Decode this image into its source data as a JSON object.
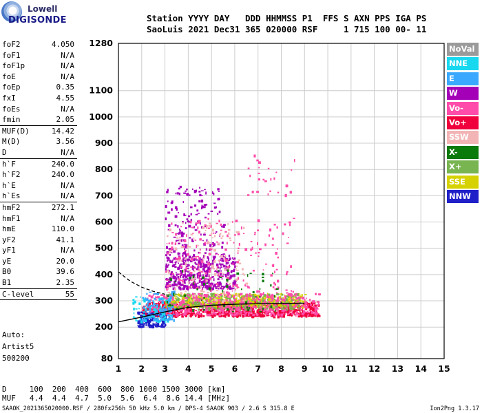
{
  "logo": {
    "line1": "Lowell",
    "line2": "DIGISONDE"
  },
  "header": {
    "line1": "Station YYYY DAY   DDD HHMMSS P1  FFS S AXN PPS IGA PS",
    "line2": "SaoLuis 2021 Dec31 365 020000 RSF     1 715 100 00- 11"
  },
  "params": [
    {
      "label": "foF2",
      "value": "4.050"
    },
    {
      "label": "foF1",
      "value": "N/A"
    },
    {
      "label": "foF1p",
      "value": "N/A"
    },
    {
      "label": "foE",
      "value": "N/A"
    },
    {
      "label": "foEp",
      "value": "0.35"
    },
    {
      "label": "fxI",
      "value": "4.55"
    },
    {
      "label": "foEs",
      "value": "N/A"
    },
    {
      "label": "fmin",
      "value": "2.05"
    },
    {
      "label": "MUF(D)",
      "value": "14.42",
      "sep": true
    },
    {
      "label": "M(D)",
      "value": "3.56"
    },
    {
      "label": "D",
      "value": "N/A"
    },
    {
      "label": "h`F",
      "value": "240.0",
      "sep": true
    },
    {
      "label": "h`F2",
      "value": "240.0"
    },
    {
      "label": "h`E",
      "value": "N/A"
    },
    {
      "label": "h`Es",
      "value": "N/A"
    },
    {
      "label": "hmF2",
      "value": "272.1",
      "sep": true
    },
    {
      "label": "hmF1",
      "value": "N/A"
    },
    {
      "label": "hmE",
      "value": "110.0"
    },
    {
      "label": "yF2",
      "value": "41.1"
    },
    {
      "label": "yF1",
      "value": "N/A"
    },
    {
      "label": "yE",
      "value": "20.0"
    },
    {
      "label": "B0",
      "value": "39.6"
    },
    {
      "label": "B1",
      "value": "2.35"
    },
    {
      "label": "C-level",
      "value": "55",
      "sep": true
    }
  ],
  "auto": {
    "line1": "Auto:",
    "line2": "Artist5",
    "line3": "500200"
  },
  "legend": [
    {
      "label": "NoVal",
      "color": "#9a9a9a"
    },
    {
      "label": "NNE",
      "color": "#18d8f0"
    },
    {
      "label": "E",
      "color": "#3aa8ff"
    },
    {
      "label": "W",
      "color": "#a400b8"
    },
    {
      "label": "Vo-",
      "color": "#ff4caa"
    },
    {
      "label": "Vo+",
      "color": "#f0003c"
    },
    {
      "label": "SSW",
      "color": "#f2b4b4"
    },
    {
      "label": "X-",
      "color": "#0a7a0a"
    },
    {
      "label": "X+",
      "color": "#78b450"
    },
    {
      "label": "SSE",
      "color": "#d6d200"
    },
    {
      "label": "NNW",
      "color": "#2020c8"
    }
  ],
  "muf_table": {
    "d_line": "D     100  200  400  600  800 1000 1500 3000 [km]",
    "m_line": "MUF   4.4  4.4  4.7  5.0  5.6  6.4  8.6 14.4 [MHz]"
  },
  "footer": "SAAOK_2021365020000.RSF / 280fx256h 50 kHz 5.0 km / DPS-4 SAAOK 903 / 2.6 S 315.8 E",
  "version": "Ion2Png 1.3.17",
  "chart_data": {
    "type": "scatter",
    "x_axis": {
      "range": [
        1,
        15
      ],
      "ticks": [
        1,
        2,
        3,
        4,
        5,
        6,
        7,
        8,
        9,
        10,
        11,
        12,
        13,
        14,
        15
      ],
      "unit": "MHz"
    },
    "y_axis": {
      "range": [
        80,
        1280
      ],
      "ticks": [
        80,
        200,
        300,
        400,
        500,
        600,
        700,
        800,
        900,
        1000,
        1100,
        1280
      ],
      "tick_labels": [
        "80",
        "200",
        "300",
        "400",
        "500",
        "600",
        "700",
        "800",
        "900",
        "1000",
        "1100",
        "1280"
      ],
      "unit": "km"
    },
    "grid": true,
    "echo_regions": [
      {
        "name": "F-trace-low",
        "color_class": "Vo+",
        "x": [
          2.0,
          9.6
        ],
        "y": [
          245,
          300
        ],
        "density": 900
      },
      {
        "name": "F-trace-yellow",
        "color_class": "SSE",
        "x": [
          3.0,
          9.0
        ],
        "y": [
          280,
          330
        ],
        "density": 520
      },
      {
        "name": "F-trace-green",
        "color_class": "X+",
        "x": [
          3.0,
          8.8
        ],
        "y": [
          270,
          330
        ],
        "density": 260
      },
      {
        "name": "F-trace-pink",
        "color_class": "Vo-",
        "x": [
          2.2,
          9.6
        ],
        "y": [
          250,
          330
        ],
        "density": 420
      },
      {
        "name": "spread-W",
        "color_class": "W",
        "x": [
          3.0,
          6.0
        ],
        "y": [
          350,
          480
        ],
        "density": 420
      },
      {
        "name": "spread-W-sparse",
        "color_class": "W",
        "x": [
          3.0,
          5.5
        ],
        "y": [
          480,
          740
        ],
        "density": 150
      },
      {
        "name": "spread-Vo-",
        "color_class": "Vo-",
        "x": [
          3.0,
          8.5
        ],
        "y": [
          320,
          620
        ],
        "density": 220
      },
      {
        "name": "spread-SSW",
        "color_class": "SSW",
        "x": [
          3.0,
          6.5
        ],
        "y": [
          300,
          600
        ],
        "density": 130
      },
      {
        "name": "blue-low",
        "color_class": "NNW",
        "x": [
          1.8,
          3.0
        ],
        "y": [
          205,
          260
        ],
        "density": 130
      },
      {
        "name": "cyan-low",
        "color_class": "NNE",
        "x": [
          1.6,
          3.2
        ],
        "y": [
          225,
          320
        ],
        "density": 90
      },
      {
        "name": "e-blue",
        "color_class": "E",
        "x": [
          2.0,
          3.4
        ],
        "y": [
          230,
          340
        ],
        "density": 90
      },
      {
        "name": "x-minus",
        "color_class": "X-",
        "x": [
          3.0,
          8.0
        ],
        "y": [
          260,
          420
        ],
        "density": 60
      },
      {
        "name": "high-scatter",
        "color_class": "Vo-",
        "x": [
          6.5,
          8.6
        ],
        "y": [
          700,
          860
        ],
        "density": 25
      }
    ],
    "fitted_trace": {
      "x": [
        1.0,
        2.0,
        3.0,
        4.0,
        5.0,
        6.0,
        7.0,
        8.0,
        9.0
      ],
      "y": [
        220,
        238,
        258,
        275,
        283,
        287,
        289,
        290,
        291
      ]
    },
    "dashed_curve": {
      "x": [
        1.0,
        1.5,
        2.0,
        2.5,
        3.0
      ],
      "y": [
        410,
        375,
        352,
        336,
        325
      ]
    }
  }
}
